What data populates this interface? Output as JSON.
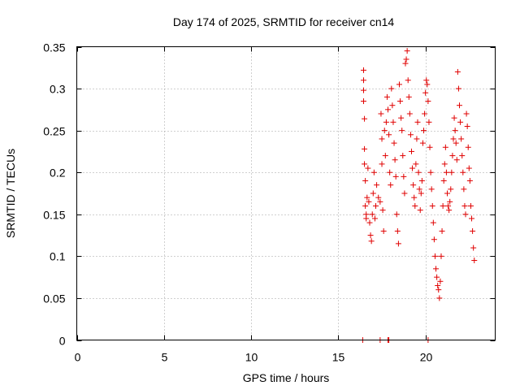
{
  "chart_data": {
    "type": "scatter",
    "title": "Day 174 of 2025, SRMTID for receiver cn14",
    "xlabel": "GPS time / hours",
    "ylabel": "SRMTID / TECUs",
    "xlim": [
      0,
      24
    ],
    "ylim": [
      0,
      0.35
    ],
    "x_ticks": [
      0,
      5,
      10,
      15,
      20
    ],
    "x_tick_labels": [
      "0",
      "5",
      "10",
      "15",
      "20"
    ],
    "y_ticks": [
      0,
      0.05,
      0.1,
      0.15,
      0.2,
      0.25,
      0.3,
      0.35
    ],
    "y_tick_labels": [
      "0",
      "0.05",
      "0.1",
      "0.15",
      "0.2",
      "0.25",
      "0.3",
      "0.35"
    ],
    "grid": true,
    "marker": "+",
    "color": "#e00000",
    "series": [
      {
        "name": "cn14",
        "points": [
          [
            16.45,
            0.322
          ],
          [
            16.45,
            0.31
          ],
          [
            16.45,
            0.298
          ],
          [
            16.45,
            0.285
          ],
          [
            16.5,
            0.264
          ],
          [
            16.5,
            0.228
          ],
          [
            16.5,
            0.21
          ],
          [
            16.55,
            0.19
          ],
          [
            16.55,
            0.16
          ],
          [
            16.6,
            0.15
          ],
          [
            16.6,
            0.145
          ],
          [
            16.65,
            0.17
          ],
          [
            16.7,
            0.205
          ],
          [
            16.75,
            0.165
          ],
          [
            16.8,
            0.14
          ],
          [
            16.85,
            0.125
          ],
          [
            16.9,
            0.118
          ],
          [
            16.95,
            0.15
          ],
          [
            17.0,
            0.175
          ],
          [
            17.05,
            0.2
          ],
          [
            17.1,
            0.145
          ],
          [
            17.15,
            0.16
          ],
          [
            17.2,
            0.185
          ],
          [
            17.3,
            0.17
          ],
          [
            17.4,
            0.165
          ],
          [
            17.45,
            0.27
          ],
          [
            17.5,
            0.24
          ],
          [
            17.5,
            0.21
          ],
          [
            17.55,
            0.155
          ],
          [
            17.6,
            0.13
          ],
          [
            17.65,
            0.25
          ],
          [
            17.7,
            0.22
          ],
          [
            17.75,
            0.26
          ],
          [
            17.8,
            0.29
          ],
          [
            17.85,
            0.275
          ],
          [
            17.9,
            0.245
          ],
          [
            17.95,
            0.2
          ],
          [
            18.0,
            0.185
          ],
          [
            18.05,
            0.3
          ],
          [
            18.1,
            0.28
          ],
          [
            18.15,
            0.26
          ],
          [
            18.2,
            0.235
          ],
          [
            18.25,
            0.215
          ],
          [
            18.3,
            0.195
          ],
          [
            18.35,
            0.15
          ],
          [
            18.4,
            0.13
          ],
          [
            18.45,
            0.115
          ],
          [
            18.5,
            0.305
          ],
          [
            18.55,
            0.285
          ],
          [
            18.6,
            0.265
          ],
          [
            18.65,
            0.25
          ],
          [
            18.7,
            0.22
          ],
          [
            18.75,
            0.195
          ],
          [
            18.8,
            0.175
          ],
          [
            18.85,
            0.33
          ],
          [
            18.9,
            0.335
          ],
          [
            18.95,
            0.345
          ],
          [
            19.0,
            0.31
          ],
          [
            19.05,
            0.29
          ],
          [
            19.1,
            0.27
          ],
          [
            19.15,
            0.245
          ],
          [
            19.2,
            0.225
          ],
          [
            19.25,
            0.205
          ],
          [
            19.3,
            0.185
          ],
          [
            19.35,
            0.17
          ],
          [
            19.4,
            0.16
          ],
          [
            19.45,
            0.21
          ],
          [
            19.5,
            0.24
          ],
          [
            19.55,
            0.26
          ],
          [
            19.6,
            0.2
          ],
          [
            19.65,
            0.18
          ],
          [
            19.7,
            0.155
          ],
          [
            19.75,
            0.175
          ],
          [
            19.8,
            0.19
          ],
          [
            19.85,
            0.235
          ],
          [
            19.9,
            0.25
          ],
          [
            19.95,
            0.27
          ],
          [
            20.0,
            0.295
          ],
          [
            20.05,
            0.31
          ],
          [
            20.1,
            0.305
          ],
          [
            20.15,
            0.285
          ],
          [
            20.2,
            0.26
          ],
          [
            20.25,
            0.23
          ],
          [
            20.3,
            0.2
          ],
          [
            20.35,
            0.18
          ],
          [
            20.4,
            0.16
          ],
          [
            20.45,
            0.14
          ],
          [
            20.5,
            0.12
          ],
          [
            20.55,
            0.1
          ],
          [
            20.6,
            0.085
          ],
          [
            20.65,
            0.075
          ],
          [
            20.7,
            0.065
          ],
          [
            20.75,
            0.06
          ],
          [
            20.8,
            0.05
          ],
          [
            20.85,
            0.07
          ],
          [
            20.9,
            0.1
          ],
          [
            20.95,
            0.13
          ],
          [
            21.0,
            0.16
          ],
          [
            21.05,
            0.19
          ],
          [
            21.1,
            0.21
          ],
          [
            21.15,
            0.23
          ],
          [
            21.2,
            0.2
          ],
          [
            21.25,
            0.175
          ],
          [
            21.3,
            0.16
          ],
          [
            21.35,
            0.155
          ],
          [
            21.4,
            0.165
          ],
          [
            21.45,
            0.18
          ],
          [
            21.5,
            0.2
          ],
          [
            21.55,
            0.22
          ],
          [
            21.6,
            0.24
          ],
          [
            21.65,
            0.265
          ],
          [
            21.7,
            0.25
          ],
          [
            21.75,
            0.235
          ],
          [
            21.8,
            0.215
          ],
          [
            21.85,
            0.32
          ],
          [
            21.9,
            0.3
          ],
          [
            21.95,
            0.28
          ],
          [
            22.0,
            0.26
          ],
          [
            22.05,
            0.24
          ],
          [
            22.1,
            0.22
          ],
          [
            22.15,
            0.2
          ],
          [
            22.2,
            0.18
          ],
          [
            22.25,
            0.16
          ],
          [
            22.3,
            0.15
          ],
          [
            22.35,
            0.27
          ],
          [
            22.4,
            0.255
          ],
          [
            22.45,
            0.23
          ],
          [
            22.5,
            0.205
          ],
          [
            22.55,
            0.19
          ],
          [
            22.6,
            0.16
          ],
          [
            22.65,
            0.145
          ],
          [
            22.7,
            0.13
          ],
          [
            22.75,
            0.11
          ],
          [
            22.8,
            0.095
          ]
        ]
      }
    ],
    "zero_markers_x": [
      16.4,
      17.4,
      17.85,
      17.9,
      20.15
    ]
  }
}
